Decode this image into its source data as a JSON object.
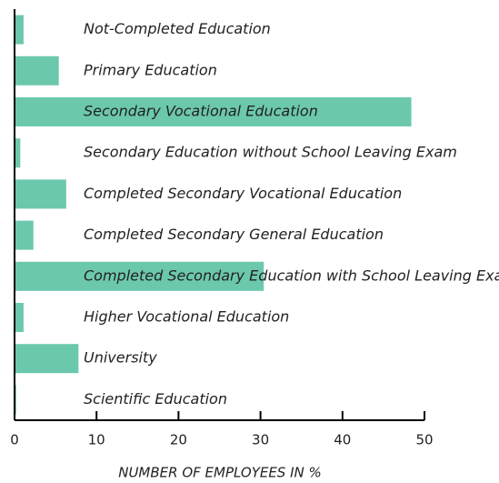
{
  "chart_data": {
    "type": "bar",
    "orientation": "horizontal",
    "x_label": "NUMBER OF EMPLOYEES IN %",
    "categories": [
      "Not-Completed Education",
      "Primary Education",
      "Secondary Vocational Education",
      "Secondary Education without School Leaving Exam",
      "Completed Secondary Vocational Education",
      "Completed Secondary General Education",
      "Completed Secondary Education with School Leaving Exam",
      "Higher Vocational Education",
      "University",
      "Scientific Education"
    ],
    "values": [
      1.1,
      5.4,
      48.4,
      0.7,
      6.3,
      2.3,
      30.4,
      1.1,
      7.8,
      0.2
    ],
    "color": "#6cc8ad",
    "xlim": [
      0,
      50
    ],
    "xticks": [
      0,
      10,
      20,
      30,
      40,
      50
    ]
  }
}
